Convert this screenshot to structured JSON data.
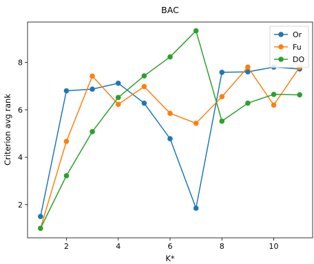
{
  "chart_data": {
    "type": "line",
    "title": "BAC",
    "xlabel": "K*",
    "ylabel": "Criterion avg rank",
    "x": [
      1,
      2,
      3,
      4,
      5,
      6,
      7,
      8,
      9,
      10,
      11
    ],
    "xlim": [
      0.5,
      11.5
    ],
    "ylim": [
      0.6,
      9.7
    ],
    "xticks": [
      2,
      4,
      6,
      8,
      10
    ],
    "yticks": [
      2,
      4,
      6,
      8
    ],
    "grid": false,
    "legend_position": "top-right",
    "series": [
      {
        "name": "Or",
        "color": "#1f77b4",
        "values": [
          1.5,
          6.8,
          6.87,
          7.12,
          6.28,
          4.78,
          1.85,
          7.58,
          7.6,
          7.8,
          7.72
        ]
      },
      {
        "name": "Fu",
        "color": "#ff7f0e",
        "values": [
          1.0,
          4.67,
          7.42,
          6.23,
          6.98,
          5.85,
          5.43,
          6.55,
          7.8,
          6.2,
          7.8
        ]
      },
      {
        "name": "DO",
        "color": "#2ca02c",
        "values": [
          1.0,
          3.22,
          5.08,
          6.52,
          7.43,
          8.23,
          9.33,
          5.52,
          6.28,
          6.65,
          6.63
        ]
      }
    ]
  }
}
